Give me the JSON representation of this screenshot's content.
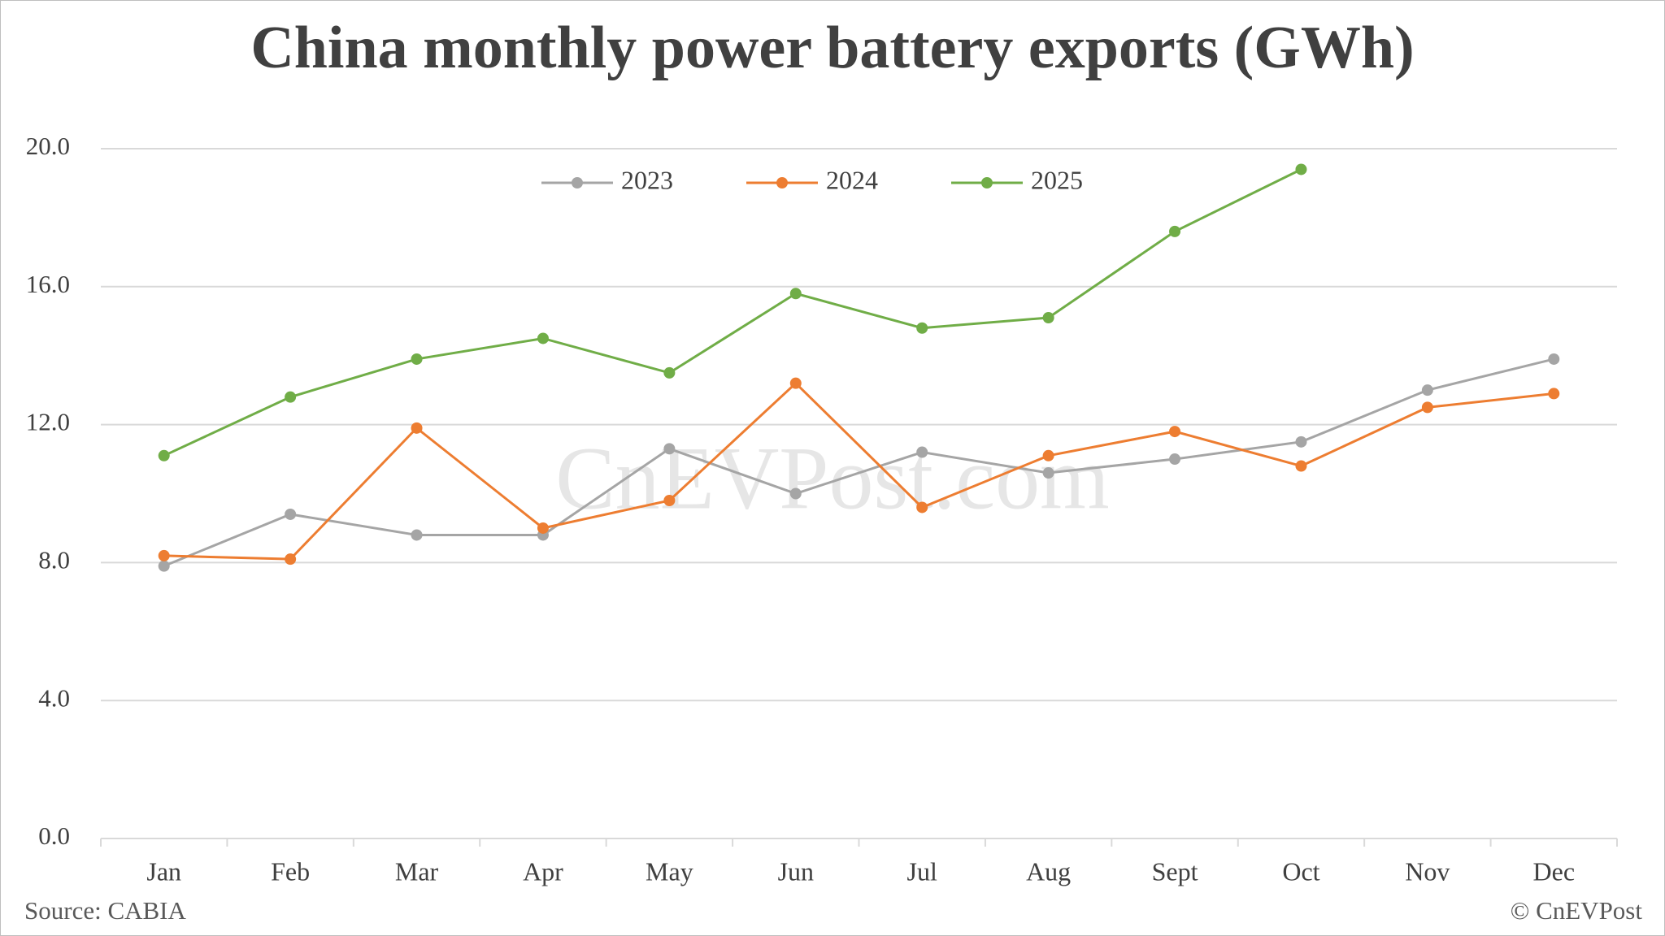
{
  "chart_data": {
    "type": "line",
    "title": "China monthly power battery exports (GWh)",
    "source": "Source: CABIA",
    "credit": "© CnEVPost",
    "watermark": "CnEVPost.com",
    "categories": [
      "Jan",
      "Feb",
      "Mar",
      "Apr",
      "May",
      "Jun",
      "Jul",
      "Aug",
      "Sept",
      "Oct",
      "Nov",
      "Dec"
    ],
    "series": [
      {
        "name": "2023",
        "color": "#a5a5a5",
        "values": [
          7.9,
          9.4,
          8.8,
          8.8,
          11.3,
          10.0,
          11.2,
          10.6,
          11.0,
          11.5,
          13.0,
          13.9
        ]
      },
      {
        "name": "2024",
        "color": "#ed7d31",
        "values": [
          8.2,
          8.1,
          11.9,
          9.0,
          9.8,
          13.2,
          9.6,
          11.1,
          11.8,
          10.8,
          12.5,
          12.9
        ]
      },
      {
        "name": "2025",
        "color": "#70ad47",
        "values": [
          11.1,
          12.8,
          13.9,
          14.5,
          13.5,
          15.8,
          14.8,
          15.1,
          17.6,
          19.4,
          null,
          null
        ]
      }
    ],
    "ylim": [
      0,
      20
    ],
    "yticks": [
      {
        "value": 0,
        "label": "0.0"
      },
      {
        "value": 4,
        "label": "4.0"
      },
      {
        "value": 8,
        "label": "8.0"
      },
      {
        "value": 12,
        "label": "12.0"
      },
      {
        "value": 16,
        "label": "16.0"
      },
      {
        "value": 20,
        "label": "20.0"
      }
    ],
    "grid": true,
    "legend": "top"
  }
}
